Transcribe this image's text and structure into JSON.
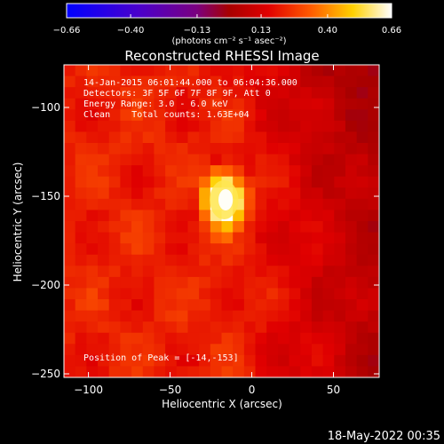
{
  "colorbar": {
    "ticks": [
      -0.66,
      -0.4,
      -0.13,
      0.13,
      0.4,
      0.66
    ],
    "tick_labels": [
      "−0.66",
      "−0.40",
      "−0.13",
      "0.13",
      "0.40",
      "0.66"
    ],
    "units_label": "(photons cm⁻² s⁻¹ asec⁻²)",
    "range": [
      -0.66,
      0.66
    ],
    "colormap": "blue-purple-red-yellow-white"
  },
  "chart_data": {
    "type": "heatmap",
    "title": "Reconstructed RHESSI Image",
    "xlabel": "Heliocentric X (arcsec)",
    "ylabel": "Heliocentric Y (arcsec)",
    "xlim": [
      -115,
      78
    ],
    "ylim": [
      -252,
      -76
    ],
    "x_ticks": [
      -100,
      -50,
      0,
      50
    ],
    "y_ticks": [
      -100,
      -150,
      -200,
      -250
    ],
    "x_tick_labels": [
      "−100",
      "−50",
      "0",
      "50"
    ],
    "y_tick_labels": [
      "−100",
      "−150",
      "−200",
      "−250"
    ],
    "info_lines": [
      "14-Jan-2015 06:01:44.000 to 06:04:36.000",
      "Detectors: 3F 5F 6F 7F 8F 9F, Att 0",
      "Energy Range: 3.0 - 6.0 keV",
      "Clean    Total counts: 1.63E+04"
    ],
    "peak_label": "Position of Peak = [-14,-153]",
    "peak": {
      "x": -14,
      "y": -153,
      "value": 0.66
    },
    "source": {
      "x": -17,
      "y": -152,
      "sigma_x": 8,
      "sigma_y": 10,
      "amplitude": 0.66
    },
    "background_level": 0.22,
    "negative_region": "upper-right and right edge"
  },
  "footer": {
    "date_label": "18-May-2022 00:35"
  }
}
